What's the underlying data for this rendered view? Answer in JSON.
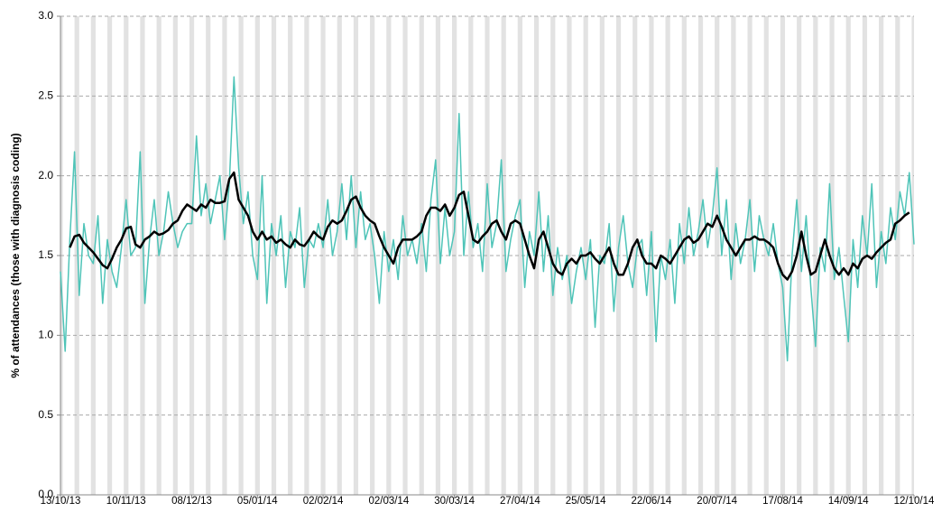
{
  "chart_data": {
    "type": "line",
    "y_label": "% of attendances  (those with diagnosis coding)",
    "x": [
      0,
      2,
      4,
      6,
      8,
      10,
      12,
      14,
      16,
      18,
      20,
      22,
      24,
      26,
      28,
      30,
      32,
      34,
      36,
      38,
      40,
      42,
      44,
      46,
      48,
      50,
      52,
      54,
      56,
      58,
      60,
      62,
      64,
      66,
      68,
      70,
      72,
      74,
      76,
      78,
      80,
      82,
      84,
      86,
      88,
      90,
      92,
      94,
      96,
      98,
      100,
      102,
      104,
      106,
      108,
      110,
      112,
      114,
      116,
      118,
      120,
      122,
      124,
      126,
      128,
      130,
      132,
      134,
      136,
      138,
      140,
      142,
      144,
      146,
      148,
      150,
      152,
      154,
      156,
      158,
      160,
      162,
      164,
      166,
      168,
      170,
      172,
      174,
      176,
      178,
      180,
      182,
      184,
      186,
      188,
      190,
      192,
      194,
      196,
      198,
      200,
      202,
      204,
      206,
      208,
      210,
      212,
      214,
      216,
      218,
      220,
      222,
      224,
      226,
      228,
      230,
      232,
      234,
      236,
      238,
      240,
      242,
      244,
      246,
      248,
      250,
      252,
      254,
      256,
      258,
      260,
      262,
      264,
      266,
      268,
      270,
      272,
      274,
      276,
      278,
      280,
      282,
      284,
      286,
      288,
      290,
      292,
      294,
      296,
      298,
      300,
      302,
      304,
      306,
      308,
      310,
      312,
      314,
      316,
      318,
      320,
      322,
      324,
      326,
      328,
      330,
      332,
      334,
      336,
      338,
      340,
      342,
      344,
      346,
      348,
      350,
      352,
      354,
      356,
      358,
      360,
      362,
      364
    ],
    "series": [
      {
        "color": "#4fc4b8",
        "width": 1.5,
        "values": [
          1.4,
          0.9,
          1.6,
          2.15,
          1.25,
          1.7,
          1.5,
          1.45,
          1.75,
          1.2,
          1.6,
          1.4,
          1.3,
          1.55,
          1.85,
          1.5,
          1.55,
          2.15,
          1.2,
          1.6,
          1.85,
          1.5,
          1.65,
          1.9,
          1.7,
          1.55,
          1.65,
          1.7,
          1.7,
          2.25,
          1.75,
          1.95,
          1.7,
          1.85,
          2.0,
          1.6,
          1.95,
          2.62,
          2.05,
          1.7,
          1.9,
          1.5,
          1.35,
          2.0,
          1.2,
          1.7,
          1.5,
          1.75,
          1.3,
          1.65,
          1.55,
          1.8,
          1.3,
          1.6,
          1.55,
          1.7,
          1.55,
          1.85,
          1.5,
          1.65,
          1.95,
          1.6,
          2.0,
          1.55,
          1.9,
          1.6,
          1.7,
          1.5,
          1.2,
          1.65,
          1.4,
          1.6,
          1.35,
          1.75,
          1.5,
          1.6,
          1.45,
          1.7,
          1.4,
          1.85,
          2.1,
          1.45,
          1.8,
          1.5,
          1.65,
          2.39,
          1.5,
          1.9,
          1.55,
          1.7,
          1.4,
          1.95,
          1.55,
          1.7,
          2.1,
          1.4,
          1.6,
          1.75,
          1.85,
          1.3,
          1.65,
          1.5,
          1.9,
          1.4,
          1.75,
          1.25,
          1.55,
          1.35,
          1.5,
          1.2,
          1.4,
          1.55,
          1.35,
          1.6,
          1.05,
          1.5,
          1.45,
          1.7,
          1.15,
          1.55,
          1.75,
          1.45,
          1.3,
          1.55,
          1.6,
          1.25,
          1.65,
          0.96,
          1.5,
          1.35,
          1.6,
          1.2,
          1.7,
          1.45,
          1.8,
          1.5,
          1.65,
          1.85,
          1.55,
          1.75,
          2.05,
          1.5,
          1.85,
          1.35,
          1.7,
          1.45,
          1.6,
          1.85,
          1.4,
          1.75,
          1.6,
          1.5,
          1.7,
          1.45,
          1.3,
          0.84,
          1.5,
          1.85,
          1.4,
          1.75,
          1.3,
          0.93,
          1.55,
          1.4,
          1.95,
          1.35,
          1.55,
          1.25,
          0.96,
          1.6,
          1.3,
          1.75,
          1.5,
          1.95,
          1.3,
          1.65,
          1.45,
          1.8,
          1.6,
          1.9,
          1.75,
          2.02,
          1.57
        ]
      },
      {
        "color": "#000000",
        "width": 2.5,
        "values": [
          null,
          null,
          1.55,
          1.62,
          1.63,
          1.58,
          1.55,
          1.52,
          1.48,
          1.44,
          1.42,
          1.48,
          1.55,
          1.6,
          1.67,
          1.68,
          1.57,
          1.55,
          1.6,
          1.62,
          1.65,
          1.63,
          1.64,
          1.66,
          1.7,
          1.72,
          1.78,
          1.82,
          1.8,
          1.78,
          1.82,
          1.8,
          1.85,
          1.83,
          1.83,
          1.84,
          1.98,
          2.02,
          1.85,
          1.8,
          1.75,
          1.65,
          1.6,
          1.65,
          1.6,
          1.62,
          1.58,
          1.6,
          1.57,
          1.55,
          1.6,
          1.57,
          1.56,
          1.6,
          1.65,
          1.62,
          1.6,
          1.68,
          1.72,
          1.7,
          1.72,
          1.78,
          1.85,
          1.87,
          1.8,
          1.75,
          1.72,
          1.7,
          1.62,
          1.55,
          1.5,
          1.45,
          1.55,
          1.6,
          1.6,
          1.6,
          1.62,
          1.65,
          1.75,
          1.8,
          1.8,
          1.78,
          1.82,
          1.75,
          1.8,
          1.88,
          1.9,
          1.75,
          1.6,
          1.58,
          1.62,
          1.65,
          1.7,
          1.72,
          1.65,
          1.6,
          1.7,
          1.72,
          1.7,
          1.6,
          1.5,
          1.42,
          1.6,
          1.65,
          1.55,
          1.45,
          1.4,
          1.38,
          1.45,
          1.48,
          1.45,
          1.5,
          1.5,
          1.52,
          1.48,
          1.45,
          1.5,
          1.55,
          1.45,
          1.38,
          1.38,
          1.45,
          1.55,
          1.6,
          1.5,
          1.45,
          1.45,
          1.42,
          1.5,
          1.48,
          1.45,
          1.5,
          1.55,
          1.6,
          1.62,
          1.58,
          1.6,
          1.65,
          1.7,
          1.68,
          1.75,
          1.68,
          1.6,
          1.55,
          1.5,
          1.55,
          1.6,
          1.6,
          1.62,
          1.6,
          1.6,
          1.58,
          1.55,
          1.45,
          1.38,
          1.35,
          1.4,
          1.5,
          1.65,
          1.5,
          1.38,
          1.4,
          1.5,
          1.6,
          1.5,
          1.42,
          1.38,
          1.42,
          1.38,
          1.45,
          1.42,
          1.48,
          1.5,
          1.48,
          1.52,
          1.55,
          1.58,
          1.6,
          1.7,
          1.72,
          1.75,
          1.77,
          null
        ]
      }
    ],
    "xlim": [
      0,
      364
    ],
    "xticks": [
      {
        "value": 0,
        "label": "13/10/13"
      },
      {
        "value": 28,
        "label": "10/11/13"
      },
      {
        "value": 56,
        "label": "08/12/13"
      },
      {
        "value": 84,
        "label": "05/01/14"
      },
      {
        "value": 112,
        "label": "02/02/14"
      },
      {
        "value": 140,
        "label": "02/03/14"
      },
      {
        "value": 168,
        "label": "30/03/14"
      },
      {
        "value": 196,
        "label": "27/04/14"
      },
      {
        "value": 224,
        "label": "25/05/14"
      },
      {
        "value": 252,
        "label": "22/06/14"
      },
      {
        "value": 280,
        "label": "20/07/14"
      },
      {
        "value": 308,
        "label": "17/08/14"
      },
      {
        "value": 336,
        "label": "14/09/14"
      },
      {
        "value": 364,
        "label": "12/10/14"
      }
    ],
    "ylim": [
      0,
      3
    ],
    "yticks": [
      {
        "value": 0,
        "label": "0.0"
      },
      0.5,
      {
        "value": 1,
        "label": "1.0"
      },
      1.5,
      {
        "value": 2,
        "label": "2.0"
      },
      2.5,
      {
        "value": 3,
        "label": "3.0"
      }
    ],
    "grid": true,
    "weekend_shading": true,
    "shading_color": "#e2e2e2"
  }
}
